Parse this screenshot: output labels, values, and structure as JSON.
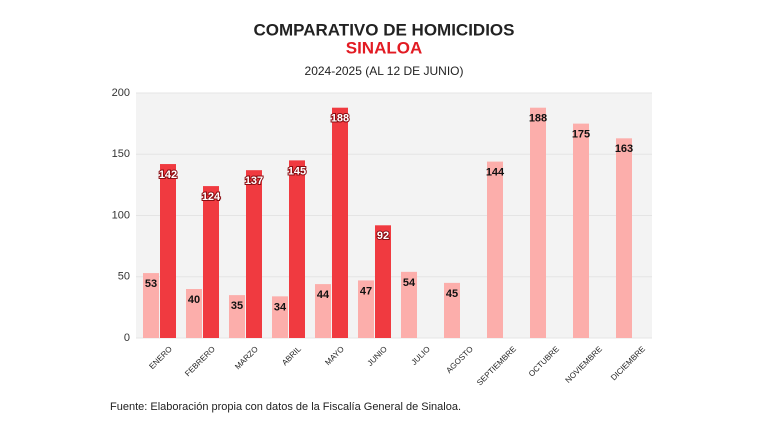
{
  "chart_data": {
    "type": "bar",
    "title": "COMPARATIVO DE HOMICIDIOS",
    "subtitle": "SINALOA",
    "period": "2024-2025 (AL 12 DE JUNIO)",
    "source": "Fuente: Elaboración propia con datos de la Fiscalía General de Sinaloa.",
    "categories": [
      "ENERO",
      "FEBRERO",
      "MARZO",
      "ABRIL",
      "MAYO",
      "JUNIO",
      "JULIO",
      "AGOSTO",
      "SEPTIEMBRE",
      "OCTUBRE",
      "NOVIEMBRE",
      "DICIEMBRE"
    ],
    "series": [
      {
        "color": "#fcaeab",
        "values": [
          53,
          40,
          35,
          34,
          44,
          47,
          54,
          45,
          144,
          188,
          175,
          163
        ]
      },
      {
        "color": "#f03a40",
        "values": [
          142,
          124,
          137,
          145,
          188,
          92,
          null,
          null,
          null,
          null,
          null,
          null
        ]
      }
    ],
    "ylim": [
      0,
      200
    ],
    "yticks": [
      0,
      50,
      100,
      150,
      200
    ],
    "grid": true
  }
}
